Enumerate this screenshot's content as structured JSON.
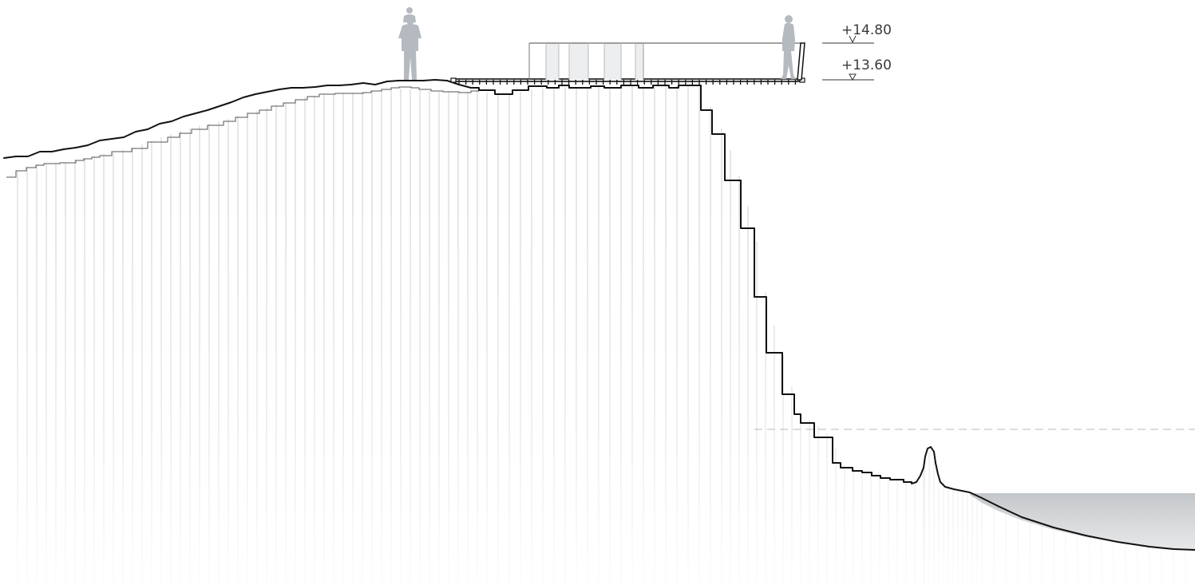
{
  "drawing": {
    "type": "site-section",
    "level_marks": [
      {
        "label": "+14.80",
        "symbol": "open-triangle-down"
      },
      {
        "label": "+13.60",
        "symbol": "open-triangle-down"
      }
    ],
    "figures": [
      "adult-carrying-child-silhouette",
      "walking-person-silhouette"
    ],
    "colors": {
      "terrain_line": "#111111",
      "column_lines": "#cfcfcf",
      "water_fill": "#6d747b",
      "people": "#b4babf",
      "canopy_panels": "#e9ebed"
    }
  }
}
